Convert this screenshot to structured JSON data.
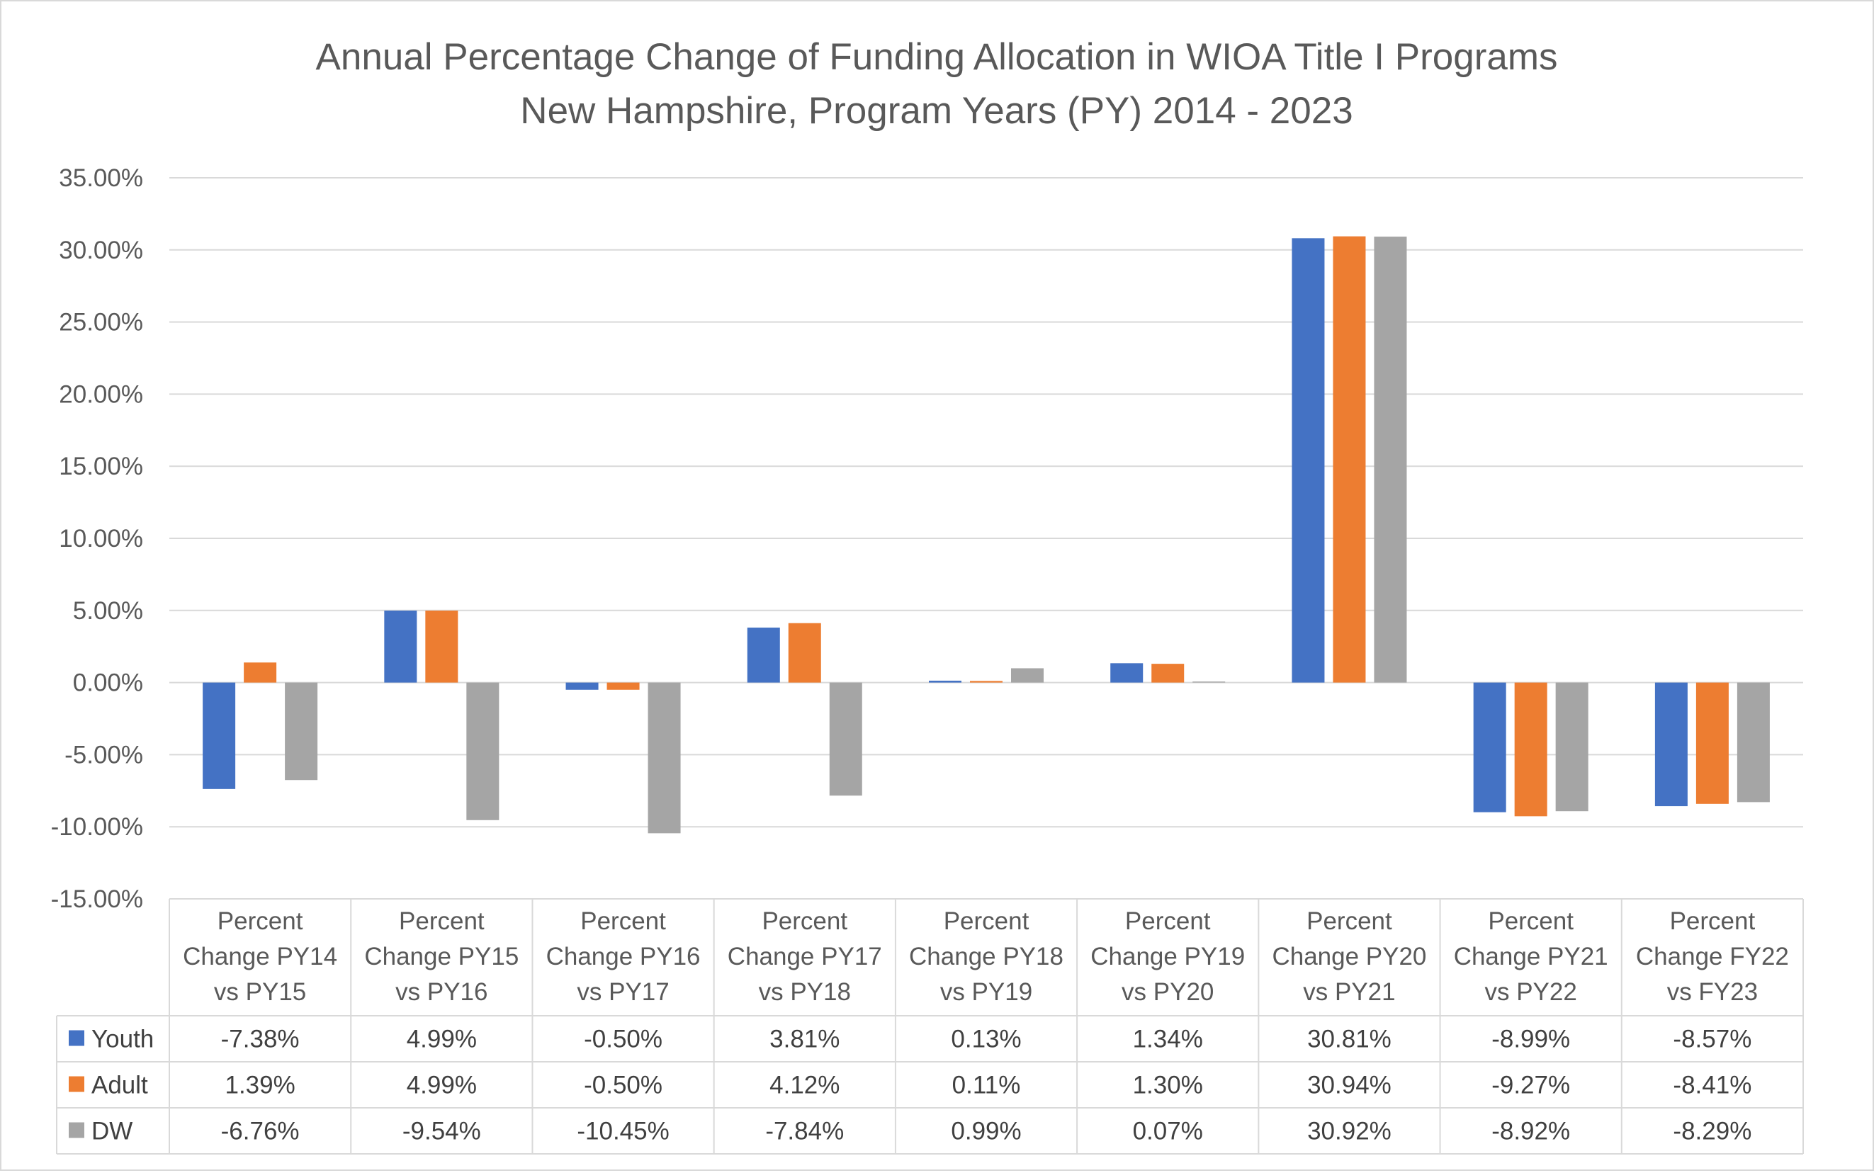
{
  "chart_data": {
    "type": "bar",
    "title": "Annual Percentage Change of Funding Allocation in WIOA Title I Programs",
    "subtitle": "New Hampshire, Program Years (PY) 2014 - 2023",
    "xlabel": "",
    "ylabel": "",
    "ylim": [
      -15,
      35
    ],
    "y_tick_step": 5,
    "y_tick_labels": [
      "-15.00%",
      "-10.00%",
      "-5.00%",
      "0.00%",
      "5.00%",
      "10.00%",
      "15.00%",
      "20.00%",
      "25.00%",
      "30.00%",
      "35.00%"
    ],
    "grid": true,
    "legend_placement": "data-table",
    "categories": [
      [
        "Percent",
        "Change PY14",
        "vs PY15"
      ],
      [
        "Percent",
        "Change PY15",
        "vs PY16"
      ],
      [
        "Percent",
        "Change PY16",
        "vs PY17"
      ],
      [
        "Percent",
        "Change PY17",
        "vs PY18"
      ],
      [
        "Percent",
        "Change PY18",
        "vs PY19"
      ],
      [
        "Percent",
        "Change PY19",
        "vs PY20"
      ],
      [
        "Percent",
        "Change PY20",
        "vs PY21"
      ],
      [
        "Percent",
        "Change PY21",
        "vs PY22"
      ],
      [
        "Percent",
        "Change FY22",
        "vs FY23"
      ]
    ],
    "series": [
      {
        "name": "Youth",
        "color": "#4472c4",
        "values": [
          -7.38,
          4.99,
          -0.5,
          3.81,
          0.13,
          1.34,
          30.81,
          -8.99,
          -8.57
        ],
        "labels": [
          "-7.38%",
          "4.99%",
          "-0.50%",
          "3.81%",
          "0.13%",
          "1.34%",
          "30.81%",
          "-8.99%",
          "-8.57%"
        ]
      },
      {
        "name": "Adult",
        "color": "#ed7d31",
        "values": [
          1.39,
          4.99,
          -0.5,
          4.12,
          0.11,
          1.3,
          30.94,
          -9.27,
          -8.41
        ],
        "labels": [
          "1.39%",
          "4.99%",
          "-0.50%",
          "4.12%",
          "0.11%",
          "1.30%",
          "30.94%",
          "-9.27%",
          "-8.41%"
        ]
      },
      {
        "name": "DW",
        "color": "#a5a5a5",
        "values": [
          -6.76,
          -9.54,
          -10.45,
          -7.84,
          0.99,
          0.07,
          30.92,
          -8.92,
          -8.29
        ],
        "labels": [
          "-6.76%",
          "-9.54%",
          "-10.45%",
          "-7.84%",
          "0.99%",
          "0.07%",
          "30.92%",
          "-8.92%",
          "-8.29%"
        ]
      }
    ]
  }
}
